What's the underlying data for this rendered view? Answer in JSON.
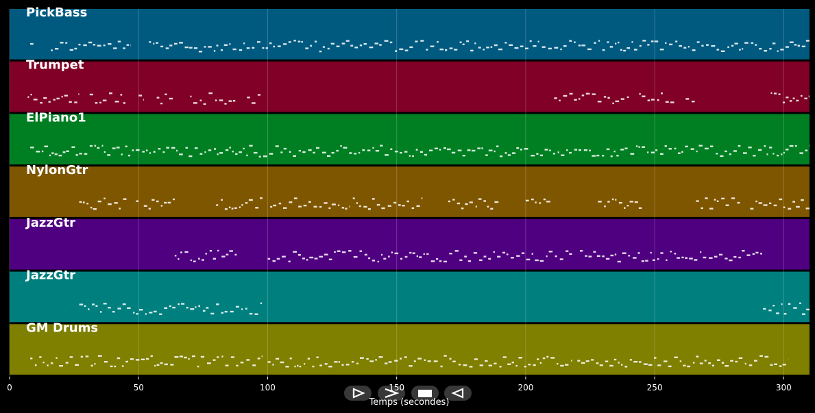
{
  "chart_data": {
    "type": "piano-roll",
    "xlabel": "Temps (secondes)",
    "xlim": [
      0,
      310
    ],
    "x_ticks": [
      0,
      50,
      100,
      150,
      200,
      250,
      300
    ],
    "grid": true,
    "tracks": [
      {
        "name": "PickBass",
        "color": "#005a80",
        "segments": [
          [
            8,
            10
          ],
          [
            16,
            47
          ],
          [
            54,
            310
          ]
        ]
      },
      {
        "name": "Trumpet",
        "color": "#800027",
        "segments": [
          [
            7,
            27
          ],
          [
            31,
            45
          ],
          [
            50,
            52
          ],
          [
            57,
            64
          ],
          [
            70,
            88
          ],
          [
            92,
            98
          ],
          [
            211,
            240
          ],
          [
            244,
            258
          ],
          [
            262,
            266
          ],
          [
            295,
            310
          ]
        ]
      },
      {
        "name": "ElPiano1",
        "color": "#007f22",
        "segments": [
          [
            8,
            310
          ]
        ]
      },
      {
        "name": "NylonGtr",
        "color": "#7f5600",
        "segments": [
          [
            27,
            46
          ],
          [
            49,
            51
          ],
          [
            52,
            64
          ],
          [
            80,
            98
          ],
          [
            101,
            132
          ],
          [
            133,
            160
          ],
          [
            170,
            190
          ],
          [
            200,
            210
          ],
          [
            228,
            245
          ],
          [
            266,
            283
          ],
          [
            287,
            310
          ]
        ]
      },
      {
        "name": "JazzGtr",
        "color": "#4f0080",
        "segments": [
          [
            64,
            88
          ],
          [
            100,
            218
          ],
          [
            221,
            292
          ]
        ]
      },
      {
        "name": "JazzGtr",
        "color": "#007f7f",
        "segments": [
          [
            27,
            98
          ],
          [
            292,
            310
          ]
        ]
      },
      {
        "name": "GM Drums",
        "color": "#7f7f00",
        "segments": [
          [
            8,
            98
          ],
          [
            100,
            218
          ],
          [
            220,
            302
          ]
        ]
      }
    ]
  },
  "controls": [
    {
      "name": "step-forward-control",
      "icon": "step-forward-icon"
    },
    {
      "name": "next-control",
      "icon": "chevron-right-icon"
    },
    {
      "name": "stop-control",
      "icon": "stop-icon"
    },
    {
      "name": "step-back-control",
      "icon": "step-back-icon"
    }
  ]
}
